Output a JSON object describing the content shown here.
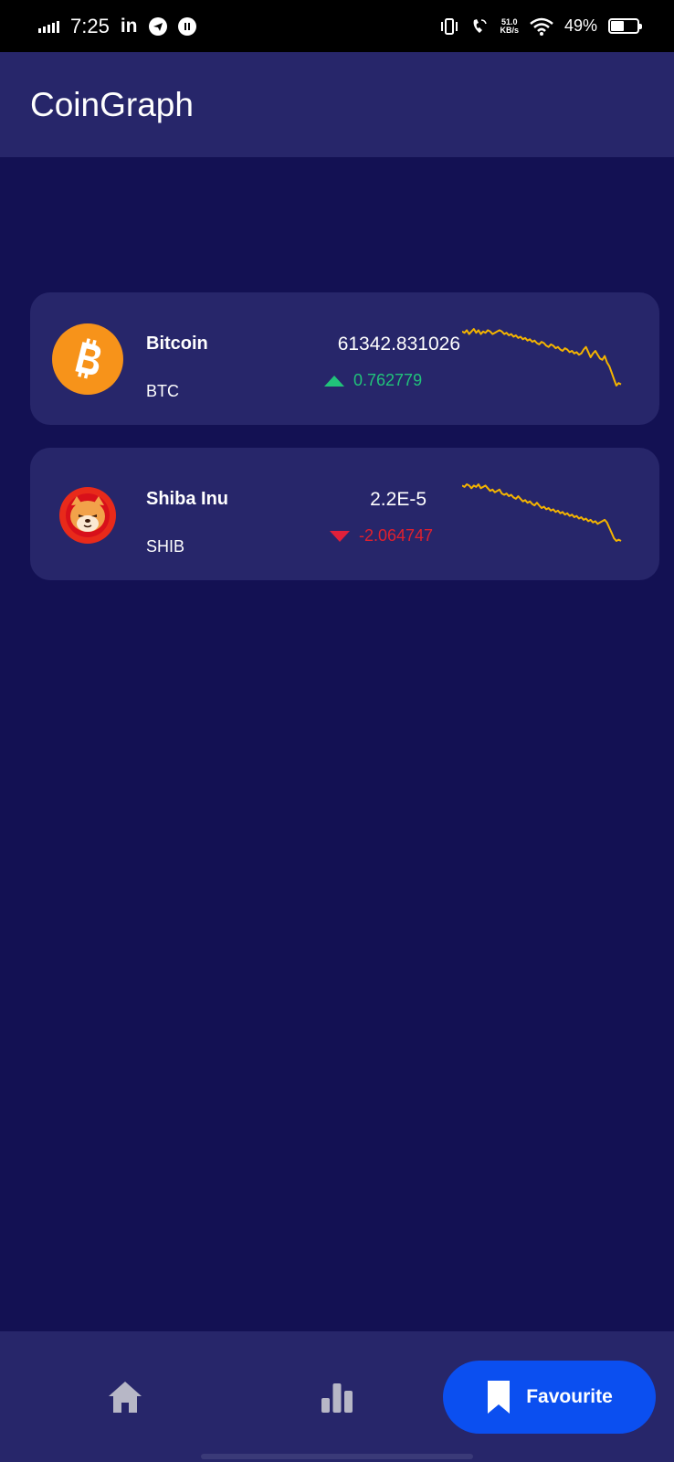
{
  "status_bar": {
    "time": "7:25",
    "linkedin_text": "in",
    "speed_value": "51.0",
    "speed_unit": "KB/s",
    "battery_percent": "49%",
    "battery_level": 0.49
  },
  "app_bar": {
    "title": "CoinGraph"
  },
  "coins": [
    {
      "name": "Bitcoin",
      "symbol": "BTC",
      "price": "61342.831026",
      "change": "0.762779",
      "direction": "up",
      "change_color": "#21c37a",
      "logo_color": "#f7931a",
      "logo_icon": "bitcoin-icon",
      "sparkline": [
        62,
        61,
        63,
        60,
        62,
        64,
        61,
        63,
        60,
        62,
        61,
        63,
        62,
        60,
        61,
        62,
        63,
        62,
        60,
        61,
        59,
        60,
        58,
        59,
        57,
        58,
        56,
        57,
        55,
        56,
        54,
        55,
        53,
        52,
        54,
        53,
        51,
        50,
        52,
        51,
        49,
        50,
        48,
        47,
        49,
        48,
        46,
        47,
        45,
        46,
        44,
        45,
        48,
        50,
        46,
        42,
        45,
        47,
        44,
        41,
        40,
        43,
        38,
        35,
        30,
        25,
        20,
        22,
        21
      ]
    },
    {
      "name": "Shiba Inu",
      "symbol": "SHIB",
      "price": "2.2E-5",
      "change": "-2.064747",
      "direction": "down",
      "change_color": "#e0202e",
      "logo_color": "#e82a1a",
      "logo_icon": "shiba-dog-icon",
      "sparkline": [
        62,
        61,
        63,
        62,
        60,
        62,
        61,
        63,
        60,
        61,
        62,
        60,
        58,
        59,
        57,
        58,
        59,
        56,
        55,
        56,
        54,
        55,
        53,
        52,
        54,
        52,
        50,
        51,
        49,
        50,
        48,
        47,
        49,
        47,
        45,
        46,
        44,
        45,
        43,
        44,
        42,
        43,
        41,
        42,
        40,
        41,
        39,
        40,
        38,
        39,
        37,
        38,
        36,
        37,
        35,
        36,
        34,
        35,
        33,
        34,
        35,
        36,
        34,
        30,
        26,
        22,
        20,
        21,
        20
      ]
    }
  ],
  "bottom_nav": {
    "home_icon": "home-icon",
    "stats_icon": "bar-chart-icon",
    "favourite_label": "Favourite",
    "favourite_icon": "bookmark-icon",
    "active_color": "#0b4ff0"
  }
}
